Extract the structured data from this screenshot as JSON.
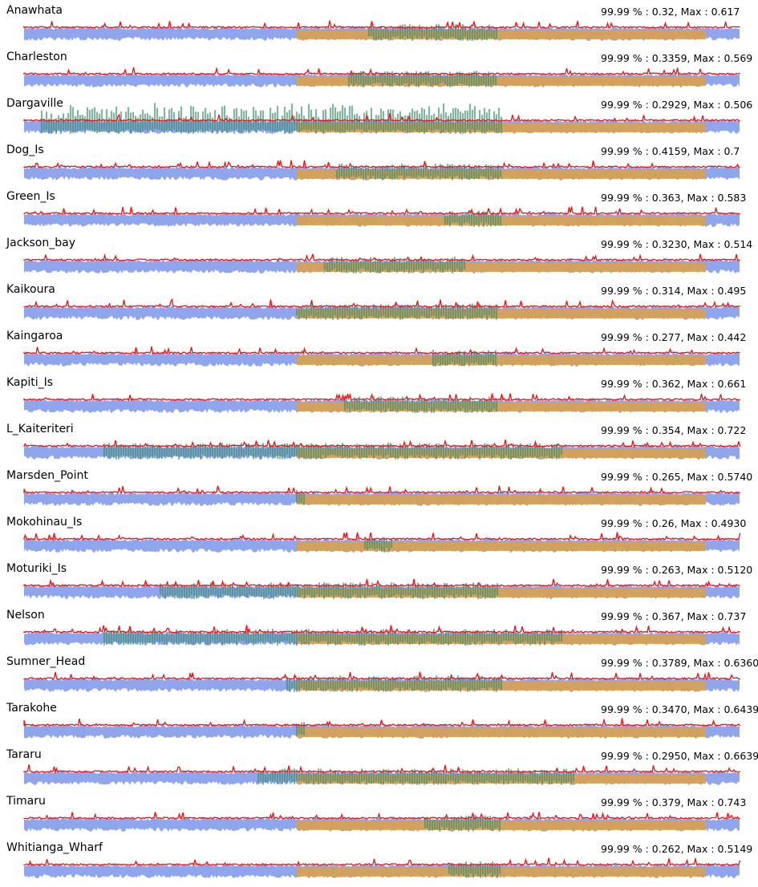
{
  "colors": {
    "tide": "#8fa6ec",
    "peaks": "#ee1111",
    "shade_orange": "#d9a050",
    "shade_green": "#3f8f6c"
  },
  "chart_data": {
    "type": "line",
    "panels": [
      {
        "station": "Anawhata",
        "stats": "99.99 % : 0.32, Max : 0.617"
      },
      {
        "station": "Charleston",
        "stats": "99.99 % : 0.3359, Max : 0.569"
      },
      {
        "station": "Dargaville",
        "stats": "99.99 % : 0.2929, Max : 0.506"
      },
      {
        "station": "Dog_Is",
        "stats": "99.99 % : 0.4159, Max : 0.7"
      },
      {
        "station": "Green_Is",
        "stats": "99.99 % : 0.363, Max : 0.583"
      },
      {
        "station": "Jackson_bay",
        "stats": "99.99 % : 0.3230, Max : 0.514"
      },
      {
        "station": "Kaikoura",
        "stats": "99.99 % : 0.314, Max : 0.495"
      },
      {
        "station": "Kaingaroa",
        "stats": "99.99 % : 0.277, Max : 0.442"
      },
      {
        "station": "Kapiti_Is",
        "stats": "99.99 % : 0.362, Max : 0.661"
      },
      {
        "station": "L_Kaiteriteri",
        "stats": "99.99 % : 0.354, Max : 0.722"
      },
      {
        "station": "Marsden_Point",
        "stats": "99.99 % : 0.265, Max : 0.5740"
      },
      {
        "station": "Mokohinau_Is",
        "stats": "99.99 % : 0.26, Max : 0.4930"
      },
      {
        "station": "Moturiki_Is",
        "stats": "99.99 % : 0.263, Max : 0.5120"
      },
      {
        "station": "Nelson",
        "stats": "99.99 % : 0.367, Max : 0.737"
      },
      {
        "station": "Sumner_Head",
        "stats": "99.99 % : 0.3789, Max : 0.6360"
      },
      {
        "station": "Tarakohe",
        "stats": "99.99 % : 0.3470, Max : 0.6439"
      },
      {
        "station": "Tararu",
        "stats": "99.99 % : 0.2950, Max : 0.6639"
      },
      {
        "station": "Timaru",
        "stats": "99.99 % : 0.379, Max : 0.743"
      },
      {
        "station": "Whitianga_Wharf",
        "stats": "99.99 % : 0.262, Max : 0.5149"
      }
    ]
  }
}
